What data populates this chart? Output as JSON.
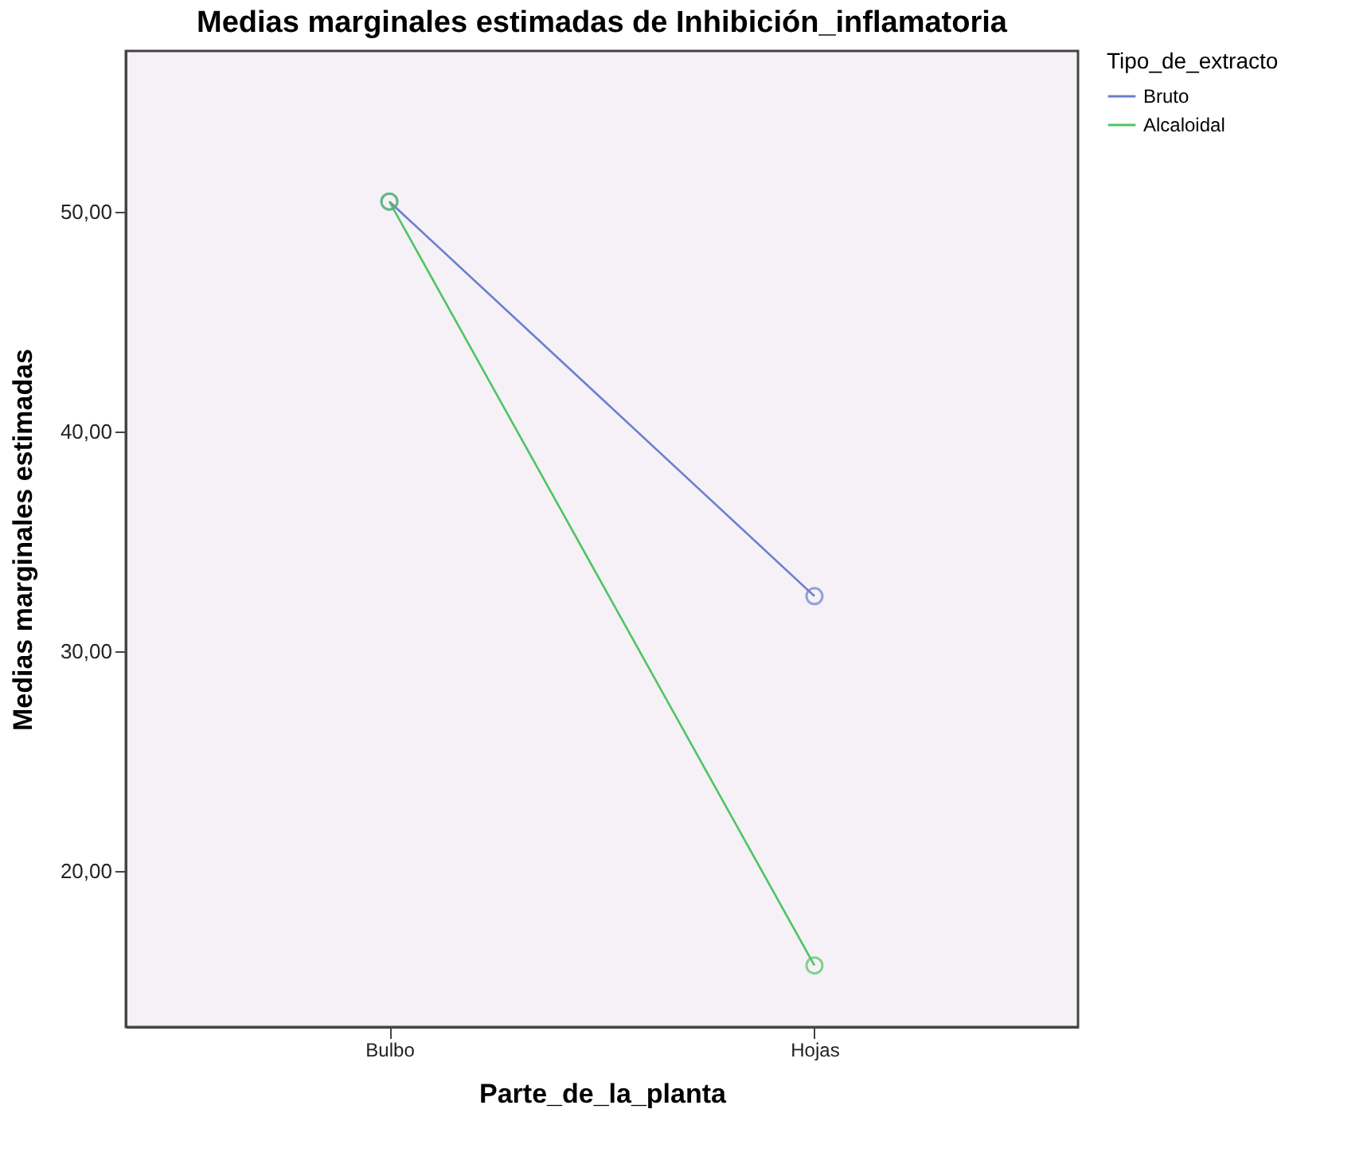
{
  "chart_data": {
    "type": "line",
    "title": "Medias marginales estimadas de Inhibición_inflamatoria",
    "xlabel": "Parte_de_la_planta",
    "ylabel": "Medias marginales estimadas",
    "legend_title": "Tipo_de_extracto",
    "categories": [
      "Bulbo",
      "Hojas"
    ],
    "series": [
      {
        "name": "Bruto",
        "color": "#6b7ed0",
        "values": [
          50.45,
          32.5
        ]
      },
      {
        "name": "Alcaloidal",
        "color": "#4fc463",
        "values": [
          50.45,
          15.7
        ]
      }
    ],
    "ylim": [
      12.9,
      57.3
    ],
    "yticks": [
      {
        "value": 20,
        "label": "20,00"
      },
      {
        "value": 30,
        "label": "30,00"
      },
      {
        "value": 40,
        "label": "40,00"
      },
      {
        "value": 50,
        "label": "50,00"
      }
    ],
    "grid": false,
    "legend": "top right",
    "marker": "circle",
    "line_style": "solid"
  }
}
